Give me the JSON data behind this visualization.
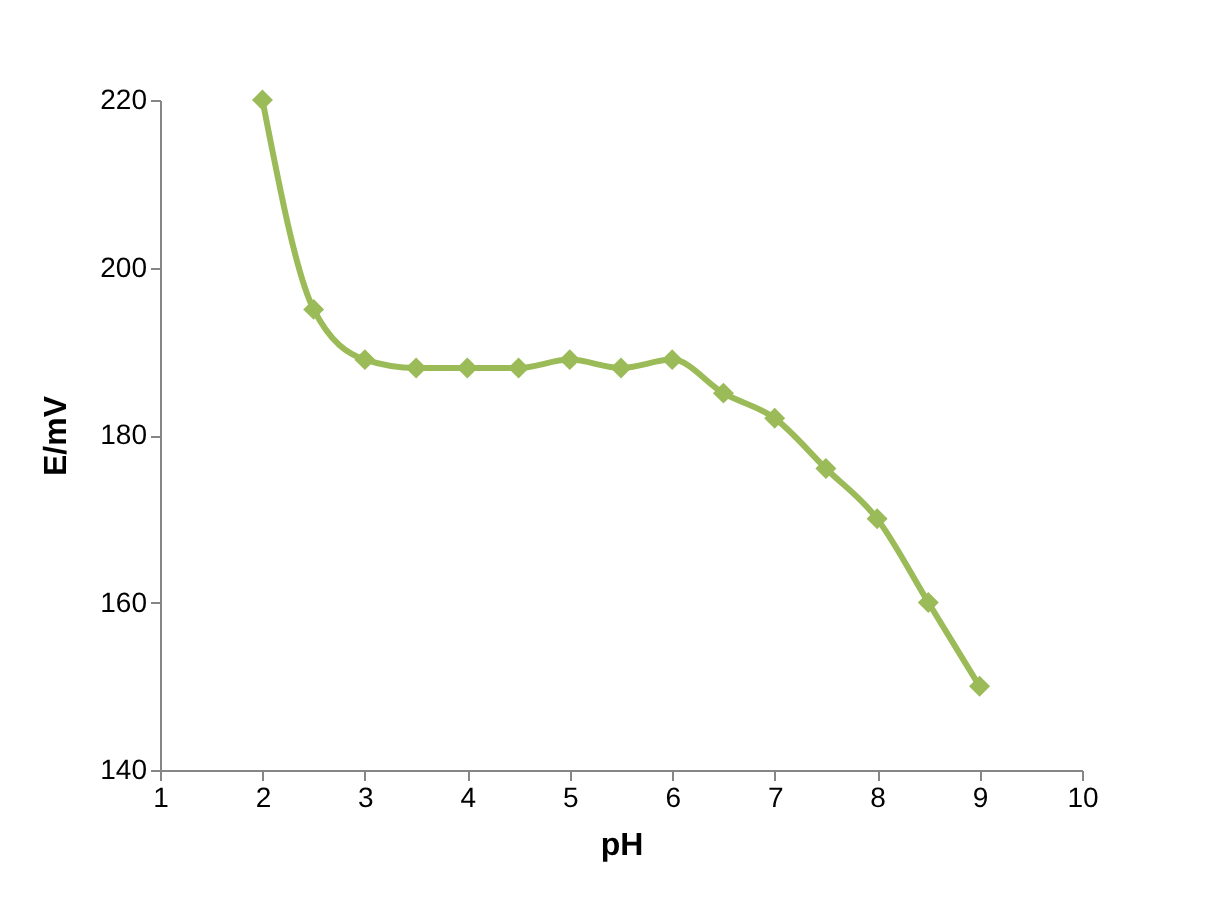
{
  "chart_data": {
    "type": "line",
    "xlabel": "pH",
    "ylabel": "E/mV",
    "x": [
      2,
      2.5,
      3,
      3.5,
      4,
      4.5,
      5,
      5.5,
      6,
      6.5,
      7,
      7.5,
      8,
      8.5,
      9
    ],
    "series": [
      {
        "color": "#9bbb59",
        "values": [
          220,
          195,
          189,
          188,
          188,
          188,
          189,
          188,
          189,
          185,
          182,
          176,
          170,
          160,
          150
        ]
      }
    ],
    "xlim": [
      1,
      10
    ],
    "xticks": [
      1,
      2,
      3,
      4,
      5,
      6,
      7,
      8,
      9,
      10
    ],
    "ylim": [
      140,
      220
    ],
    "yticks": [
      140,
      160,
      180,
      200,
      220
    ],
    "grid": false,
    "marker": "diamond",
    "line_style": "solid"
  }
}
